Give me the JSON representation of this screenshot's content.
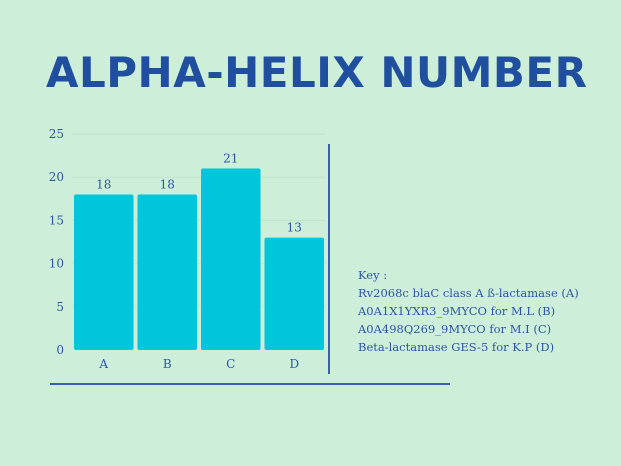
{
  "title": "ALPHA-HELIX NUMBER",
  "chart_data": {
    "type": "bar",
    "title": "",
    "xlabel": "",
    "ylabel": "",
    "categories": [
      "A",
      "B",
      "C",
      "D"
    ],
    "values": [
      18,
      18,
      21,
      13
    ],
    "ylim": [
      0,
      25
    ],
    "yticks": [
      0,
      5,
      10,
      15,
      20,
      25
    ],
    "grid": true,
    "bar_color": "#00c6dc",
    "show_data_labels": true
  },
  "key": {
    "heading": "Key :",
    "items": [
      "Rv2068c blaC class A ß-lactamase  (A)",
      "A0A1X1YXR3_9MYCO for M.L  (B)",
      "A0A498Q269_9MYCO for M.I (C)",
      "Beta-lactamase GES-5 for K.P (D)"
    ]
  },
  "colors": {
    "background": "#cdefd9",
    "title": "#1f4f9e",
    "text": "#2c55a5",
    "bar": "#00c6dc",
    "rule": "#3a5fae"
  }
}
